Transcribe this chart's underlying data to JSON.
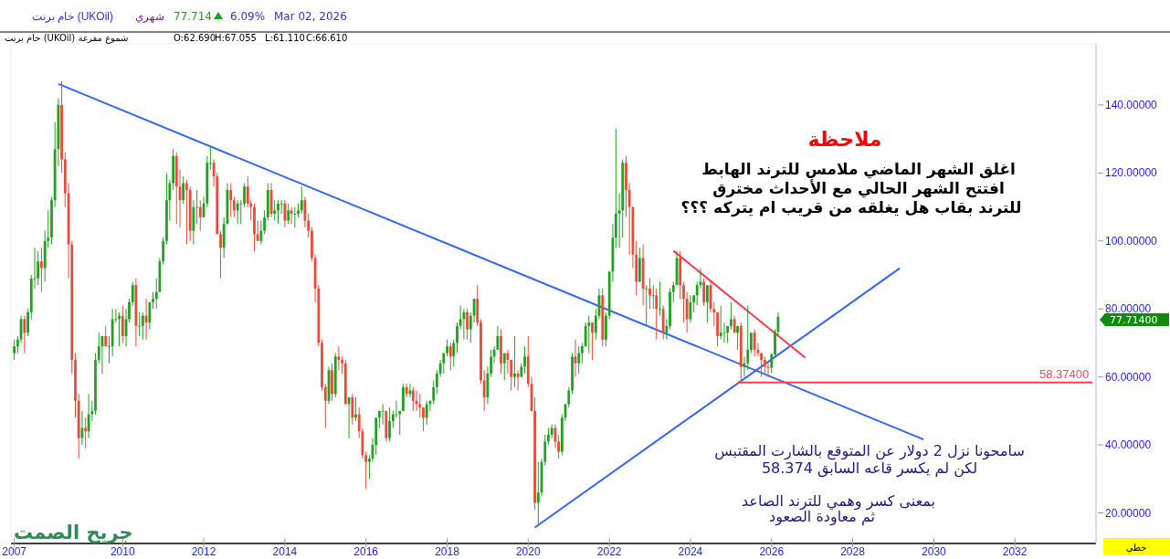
{
  "chart_data": {
    "type": "candlestick",
    "title": "خام برنت (UKOil)",
    "subtitle": "شهري",
    "xlim": [
      "2007-04",
      "2034-01"
    ],
    "ylim": [
      11,
      158
    ],
    "xticks": [
      {
        "value": "2007-05",
        "label": "2007"
      },
      "2010",
      "2012",
      "2014",
      "2016",
      "2018",
      "2020",
      "2022",
      "2024",
      "2026",
      "2028",
      "2030",
      "2032"
    ],
    "yticks": [
      {
        "value": 20,
        "label": "20.00000"
      },
      {
        "value": 40,
        "label": "40.00000"
      },
      {
        "value": 60,
        "label": "60.00000"
      },
      {
        "value": 80,
        "label": "80.00000"
      },
      {
        "value": 100,
        "label": "100.00000"
      },
      {
        "value": 120,
        "label": "120.00000"
      },
      {
        "value": 140,
        "label": "140.00000"
      }
    ],
    "x": [
      "2007-05",
      "2007-06",
      "2007-07",
      "2007-08",
      "2007-09",
      "2007-10",
      "2007-11",
      "2007-12",
      "2008-01",
      "2008-02",
      "2008-03",
      "2008-04",
      "2008-05",
      "2008-06",
      "2008-07",
      "2008-08",
      "2008-09",
      "2008-10",
      "2008-11",
      "2008-12",
      "2009-01",
      "2009-02",
      "2009-03",
      "2009-04",
      "2009-05",
      "2009-06",
      "2009-07",
      "2009-08",
      "2009-09",
      "2009-10",
      "2009-11",
      "2009-12",
      "2010-01",
      "2010-02",
      "2010-03",
      "2010-04",
      "2010-05",
      "2010-06",
      "2010-07",
      "2010-08",
      "2010-09",
      "2010-10",
      "2010-11",
      "2010-12",
      "2011-01",
      "2011-02",
      "2011-03",
      "2011-04",
      "2011-05",
      "2011-06",
      "2011-07",
      "2011-08",
      "2011-09",
      "2011-10",
      "2011-11",
      "2011-12",
      "2012-01",
      "2012-02",
      "2012-03",
      "2012-04",
      "2012-05",
      "2012-06",
      "2012-07",
      "2012-08",
      "2012-09",
      "2012-10",
      "2012-11",
      "2012-12",
      "2013-01",
      "2013-02",
      "2013-03",
      "2013-04",
      "2013-05",
      "2013-06",
      "2013-07",
      "2013-08",
      "2013-09",
      "2013-10",
      "2013-11",
      "2013-12",
      "2014-01",
      "2014-02",
      "2014-03",
      "2014-04",
      "2014-05",
      "2014-06",
      "2014-07",
      "2014-08",
      "2014-09",
      "2014-10",
      "2014-11",
      "2014-12",
      "2015-01",
      "2015-02",
      "2015-03",
      "2015-04",
      "2015-05",
      "2015-06",
      "2015-07",
      "2015-08",
      "2015-09",
      "2015-10",
      "2015-11",
      "2015-12",
      "2016-01",
      "2016-02",
      "2016-03",
      "2016-04",
      "2016-05",
      "2016-06",
      "2016-07",
      "2016-08",
      "2016-09",
      "2016-10",
      "2016-11",
      "2016-12",
      "2017-01",
      "2017-02",
      "2017-03",
      "2017-04",
      "2017-05",
      "2017-06",
      "2017-07",
      "2017-08",
      "2017-09",
      "2017-10",
      "2017-11",
      "2017-12",
      "2018-01",
      "2018-02",
      "2018-03",
      "2018-04",
      "2018-05",
      "2018-06",
      "2018-07",
      "2018-08",
      "2018-09",
      "2018-10",
      "2018-11",
      "2018-12",
      "2019-01",
      "2019-02",
      "2019-03",
      "2019-04",
      "2019-05",
      "2019-06",
      "2019-07",
      "2019-08",
      "2019-09",
      "2019-10",
      "2019-11",
      "2019-12",
      "2020-01",
      "2020-02",
      "2020-03",
      "2020-04",
      "2020-05",
      "2020-06",
      "2020-07",
      "2020-08",
      "2020-09",
      "2020-10",
      "2020-11",
      "2020-12",
      "2021-01",
      "2021-02",
      "2021-03",
      "2021-04",
      "2021-05",
      "2021-06",
      "2021-07",
      "2021-08",
      "2021-09",
      "2021-10",
      "2021-11",
      "2021-12",
      "2022-01",
      "2022-02",
      "2022-03",
      "2022-04",
      "2022-05",
      "2022-06",
      "2022-07",
      "2022-08",
      "2022-09",
      "2022-10",
      "2022-11",
      "2022-12",
      "2023-01",
      "2023-02",
      "2023-03",
      "2023-04",
      "2023-05",
      "2023-06",
      "2023-07",
      "2023-08",
      "2023-09",
      "2023-10",
      "2023-11",
      "2023-12",
      "2024-01",
      "2024-02",
      "2024-03",
      "2024-04",
      "2024-05",
      "2024-06",
      "2024-07",
      "2024-08",
      "2024-09",
      "2024-10",
      "2024-11",
      "2024-12",
      "2025-01",
      "2025-02",
      "2025-03",
      "2025-04",
      "2025-05",
      "2025-06",
      "2025-07",
      "2025-08",
      "2025-09",
      "2025-10",
      "2025-11",
      "2025-12",
      "2026-01",
      "2026-02",
      "2026-03"
    ],
    "ohlc": [
      [
        67,
        71,
        65,
        69
      ],
      [
        69,
        72,
        67,
        71
      ],
      [
        71,
        78,
        70,
        77
      ],
      [
        77,
        78,
        67,
        73
      ],
      [
        73,
        80,
        72,
        79
      ],
      [
        79,
        90,
        77,
        89
      ],
      [
        89,
        98,
        86,
        89
      ],
      [
        89,
        97,
        87,
        94
      ],
      [
        94,
        98,
        85,
        92
      ],
      [
        92,
        103,
        88,
        100
      ],
      [
        100,
        109,
        98,
        101
      ],
      [
        101,
        113,
        99,
        112
      ],
      [
        112,
        135,
        110,
        127
      ],
      [
        127,
        142,
        122,
        140
      ],
      [
        140,
        147,
        120,
        124
      ],
      [
        124,
        126,
        110,
        114
      ],
      [
        114,
        117,
        89,
        99
      ],
      [
        99,
        100,
        61,
        65
      ],
      [
        65,
        67,
        48,
        53
      ],
      [
        53,
        55,
        36,
        42
      ],
      [
        42,
        50,
        40,
        45
      ],
      [
        45,
        48,
        39,
        44
      ],
      [
        44,
        55,
        42,
        49
      ],
      [
        49,
        53,
        47,
        50
      ],
      [
        50,
        67,
        49,
        65
      ],
      [
        65,
        73,
        64,
        69
      ],
      [
        69,
        72,
        61,
        72
      ],
      [
        72,
        75,
        69,
        69
      ],
      [
        69,
        72,
        64,
        69
      ],
      [
        69,
        80,
        66,
        77
      ],
      [
        77,
        80,
        76,
        77
      ],
      [
        77,
        79,
        69,
        78
      ],
      [
        78,
        81,
        70,
        72
      ],
      [
        72,
        80,
        69,
        77
      ],
      [
        77,
        83,
        76,
        82
      ],
      [
        82,
        88,
        81,
        87
      ],
      [
        87,
        89,
        69,
        75
      ],
      [
        75,
        79,
        72,
        75
      ],
      [
        75,
        79,
        71,
        78
      ],
      [
        78,
        83,
        71,
        76
      ],
      [
        76,
        82,
        74,
        82
      ],
      [
        82,
        85,
        80,
        83
      ],
      [
        83,
        89,
        80,
        85
      ],
      [
        85,
        95,
        85,
        94
      ],
      [
        94,
        101,
        93,
        100
      ],
      [
        100,
        120,
        99,
        112
      ],
      [
        112,
        118,
        106,
        117
      ],
      [
        117,
        127,
        115,
        125
      ],
      [
        125,
        126,
        105,
        116
      ],
      [
        116,
        121,
        104,
        112
      ],
      [
        112,
        119,
        111,
        117
      ],
      [
        117,
        118,
        99,
        115
      ],
      [
        115,
        116,
        100,
        103
      ],
      [
        103,
        112,
        99,
        110
      ],
      [
        110,
        115,
        105,
        110
      ],
      [
        110,
        112,
        103,
        107
      ],
      [
        107,
        113,
        107,
        111
      ],
      [
        111,
        125,
        110,
        123
      ],
      [
        123,
        128,
        121,
        123
      ],
      [
        123,
        124,
        116,
        119
      ],
      [
        119,
        120,
        102,
        102
      ],
      [
        102,
        103,
        89,
        98
      ],
      [
        98,
        107,
        95,
        105
      ],
      [
        105,
        117,
        105,
        115
      ],
      [
        115,
        117,
        107,
        112
      ],
      [
        112,
        113,
        107,
        109
      ],
      [
        109,
        112,
        105,
        111
      ],
      [
        111,
        112,
        105,
        111
      ],
      [
        111,
        117,
        110,
        116
      ],
      [
        116,
        119,
        110,
        111
      ],
      [
        111,
        112,
        106,
        110
      ],
      [
        110,
        111,
        97,
        102
      ],
      [
        102,
        106,
        100,
        100
      ],
      [
        100,
        106,
        99,
        103
      ],
      [
        103,
        109,
        102,
        107
      ],
      [
        107,
        117,
        106,
        115
      ],
      [
        115,
        117,
        107,
        108
      ],
      [
        108,
        112,
        106,
        109
      ],
      [
        109,
        112,
        105,
        111
      ],
      [
        111,
        112,
        108,
        111
      ],
      [
        111,
        112,
        104,
        106
      ],
      [
        106,
        111,
        105,
        109
      ],
      [
        109,
        110,
        105,
        108
      ],
      [
        108,
        110,
        104,
        108
      ],
      [
        108,
        111,
        107,
        109
      ],
      [
        109,
        116,
        108,
        112
      ],
      [
        112,
        113,
        104,
        106
      ],
      [
        106,
        108,
        101,
        103
      ],
      [
        103,
        104,
        94,
        95
      ],
      [
        95,
        96,
        82,
        86
      ],
      [
        86,
        87,
        69,
        70
      ],
      [
        70,
        71,
        56,
        57
      ],
      [
        57,
        58,
        45,
        53
      ],
      [
        53,
        63,
        52,
        62
      ],
      [
        62,
        64,
        53,
        55
      ],
      [
        55,
        67,
        54,
        66
      ],
      [
        66,
        69,
        62,
        65
      ],
      [
        65,
        66,
        61,
        64
      ],
      [
        64,
        65,
        52,
        52
      ],
      [
        52,
        54,
        42,
        54
      ],
      [
        54,
        55,
        46,
        48
      ],
      [
        48,
        54,
        47,
        49
      ],
      [
        49,
        51,
        42,
        44
      ],
      [
        44,
        45,
        36,
        37
      ],
      [
        37,
        38,
        27,
        35
      ],
      [
        35,
        37,
        30,
        36
      ],
      [
        36,
        42,
        35,
        40
      ],
      [
        40,
        48,
        37,
        48
      ],
      [
        48,
        50,
        45,
        50
      ],
      [
        50,
        52,
        46,
        50
      ],
      [
        50,
        50,
        41,
        42
      ],
      [
        42,
        51,
        41,
        47
      ],
      [
        47,
        50,
        45,
        49
      ],
      [
        49,
        53,
        48,
        49
      ],
      [
        49,
        50,
        43,
        50
      ],
      [
        50,
        58,
        50,
        57
      ],
      [
        57,
        58,
        54,
        55
      ],
      [
        55,
        58,
        54,
        56
      ],
      [
        56,
        57,
        50,
        53
      ],
      [
        53,
        56,
        50,
        52
      ],
      [
        52,
        55,
        48,
        51
      ],
      [
        51,
        51,
        44,
        48
      ],
      [
        48,
        53,
        46,
        52
      ],
      [
        52,
        53,
        50,
        53
      ],
      [
        53,
        59,
        52,
        57
      ],
      [
        57,
        62,
        55,
        61
      ],
      [
        61,
        65,
        60,
        64
      ],
      [
        64,
        67,
        61,
        67
      ],
      [
        67,
        71,
        66,
        69
      ],
      [
        69,
        70,
        62,
        66
      ],
      [
        66,
        71,
        63,
        70
      ],
      [
        70,
        76,
        67,
        75
      ],
      [
        75,
        81,
        74,
        77
      ],
      [
        77,
        80,
        71,
        79
      ],
      [
        79,
        80,
        71,
        74
      ],
      [
        74,
        79,
        70,
        78
      ],
      [
        78,
        83,
        76,
        83
      ],
      [
        83,
        87,
        75,
        76
      ],
      [
        76,
        77,
        58,
        59
      ],
      [
        59,
        62,
        50,
        54
      ],
      [
        54,
        63,
        52,
        61
      ],
      [
        61,
        68,
        60,
        66
      ],
      [
        66,
        69,
        64,
        68
      ],
      [
        68,
        75,
        68,
        72
      ],
      [
        72,
        74,
        61,
        64
      ],
      [
        64,
        67,
        59,
        67
      ],
      [
        67,
        68,
        61,
        65
      ],
      [
        65,
        65,
        56,
        60
      ],
      [
        60,
        72,
        57,
        61
      ],
      [
        61,
        62,
        56,
        60
      ],
      [
        60,
        64,
        60,
        63
      ],
      [
        63,
        69,
        61,
        66
      ],
      [
        66,
        72,
        57,
        58
      ],
      [
        58,
        60,
        50,
        50
      ],
      [
        50,
        54,
        21,
        23
      ],
      [
        23,
        35,
        16,
        26
      ],
      [
        26,
        36,
        25,
        35
      ],
      [
        35,
        43,
        34,
        41
      ],
      [
        41,
        45,
        40,
        43
      ],
      [
        43,
        46,
        42,
        45
      ],
      [
        45,
        46,
        39,
        41
      ],
      [
        41,
        43,
        36,
        38
      ],
      [
        38,
        49,
        37,
        48
      ],
      [
        48,
        52,
        47,
        52
      ],
      [
        52,
        57,
        51,
        56
      ],
      [
        56,
        67,
        55,
        66
      ],
      [
        66,
        71,
        60,
        64
      ],
      [
        64,
        69,
        61,
        67
      ],
      [
        67,
        70,
        64,
        69
      ],
      [
        69,
        76,
        69,
        75
      ],
      [
        75,
        78,
        67,
        76
      ],
      [
        76,
        76,
        65,
        73
      ],
      [
        73,
        80,
        71,
        78
      ],
      [
        78,
        86,
        77,
        84
      ],
      [
        84,
        86,
        69,
        71
      ],
      [
        71,
        79,
        69,
        78
      ],
      [
        78,
        91,
        77,
        91
      ],
      [
        91,
        105,
        88,
        101
      ],
      [
        101,
        133,
        98,
        108
      ],
      [
        108,
        114,
        98,
        109
      ],
      [
        109,
        124,
        101,
        123
      ],
      [
        123,
        125,
        107,
        115
      ],
      [
        115,
        117,
        96,
        110
      ],
      [
        110,
        110,
        92,
        96
      ],
      [
        96,
        100,
        84,
        88
      ],
      [
        88,
        98,
        88,
        95
      ],
      [
        95,
        99,
        81,
        86
      ],
      [
        86,
        87,
        75,
        86
      ],
      [
        86,
        89,
        80,
        84
      ],
      [
        84,
        87,
        80,
        84
      ],
      [
        84,
        86,
        71,
        80
      ],
      [
        80,
        88,
        78,
        80
      ],
      [
        80,
        81,
        71,
        73
      ],
      [
        73,
        77,
        71,
        75
      ],
      [
        75,
        86,
        74,
        85
      ],
      [
        85,
        88,
        82,
        87
      ],
      [
        87,
        97,
        87,
        95
      ],
      [
        95,
        97,
        83,
        87
      ],
      [
        87,
        88,
        76,
        83
      ],
      [
        83,
        85,
        73,
        77
      ],
      [
        77,
        84,
        76,
        82
      ],
      [
        82,
        84,
        79,
        84
      ],
      [
        84,
        88,
        81,
        87
      ],
      [
        87,
        92,
        86,
        88
      ],
      [
        88,
        89,
        81,
        82
      ],
      [
        82,
        87,
        76,
        87
      ],
      [
        87,
        88,
        79,
        80
      ],
      [
        80,
        82,
        75,
        79
      ],
      [
        79,
        79,
        69,
        72
      ],
      [
        72,
        81,
        71,
        73
      ],
      [
        73,
        76,
        70,
        73
      ],
      [
        73,
        75,
        70,
        75
      ],
      [
        75,
        82,
        74,
        77
      ],
      [
        77,
        78,
        73,
        73
      ],
      [
        73,
        75,
        68,
        75
      ],
      [
        75,
        76,
        58.374,
        63
      ],
      [
        63,
        66,
        60,
        64
      ],
      [
        64,
        81,
        62,
        68
      ],
      [
        68,
        73,
        67,
        73
      ],
      [
        73,
        74,
        66,
        68
      ],
      [
        68,
        70,
        66,
        67
      ],
      [
        67,
        67,
        60,
        65
      ],
      [
        65,
        66,
        61,
        63
      ],
      [
        63,
        64,
        60,
        62.69
      ],
      [
        62.69,
        67.055,
        61.11,
        66.61
      ],
      [
        66.61,
        74,
        66,
        73.25
      ],
      [
        73.25,
        79,
        72,
        77.714
      ]
    ],
    "series": [
      {
        "type": "line",
        "color": "#3366ff",
        "x": [
          "2008-06",
          "2029-10"
        ],
        "values": [
          146.2,
          41.6
        ]
      },
      {
        "type": "line",
        "color": "#3366ff",
        "x": [
          "2020-03",
          "2029-03"
        ],
        "values": [
          15.7,
          92
        ]
      },
      {
        "type": "line",
        "color": "#ff3b4e",
        "x": [
          "2023-08",
          "2026-11"
        ],
        "values": [
          97.1,
          65.6
        ]
      },
      {
        "type": "line",
        "color": "#ff3b4e",
        "x": [
          "2025-03",
          "2033-12"
        ],
        "values": [
          58.374,
          58.374
        ]
      }
    ],
    "annotations": [
      "77.714",
      "6.09%",
      "Mar 02, 2026",
      "خام برنت (UKOil) شموع مفرغة",
      "O:62.690",
      "H:67.055",
      "L:61.110",
      "C:66.610",
      "ملاحظة",
      "اغلق الشهر الماضي ملامس للترند الهابط",
      "افتتح الشهر الحالي مع الأحداث مخترق",
      "للترند بقاب هل يغلقه من قريب ام يتركه ؟؟؟",
      "سامحونا نزل 2 دولار عن المتوقع بالشارت المقتبس",
      "لكن لم يكسر قاعه السابق 58.374",
      "بمعنى كسر وهمي للترند الصاعد",
      "ثم معاودة الصعود",
      {
        "text": "58.37400",
        "x": "2033-12",
        "y": 58.374
      },
      "77.71400",
      "جريح الصمت",
      "خطي"
    ]
  }
}
